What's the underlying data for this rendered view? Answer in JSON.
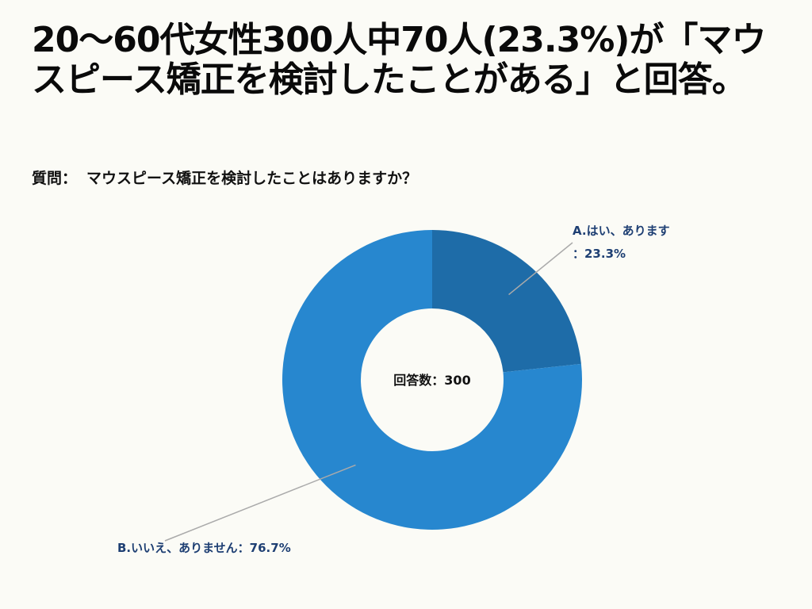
{
  "headline": "20〜60代女性300人中70人(23.3%)が「マウスピース矯正を検討したことがある」と回答。",
  "question": {
    "prefix": "質問：",
    "text": "マウスピース矯正を検討したことはありますか？"
  },
  "chart_data": {
    "type": "pie",
    "donut": true,
    "center_label": "回答数：300",
    "legend": "none",
    "slices": [
      {
        "label_line1": "A.はい、あります",
        "label_line2": "：23.3%",
        "value": 23.3,
        "color": "#1e6ca8"
      },
      {
        "label_line1": "B.いいえ、ありません：76.7%",
        "label_line2": "",
        "value": 76.7,
        "color": "#2787cf"
      }
    ]
  },
  "colors": {
    "background": "#fbfbf6",
    "label_text": "#1e3f73",
    "leader_line": "#aaaaaa"
  }
}
